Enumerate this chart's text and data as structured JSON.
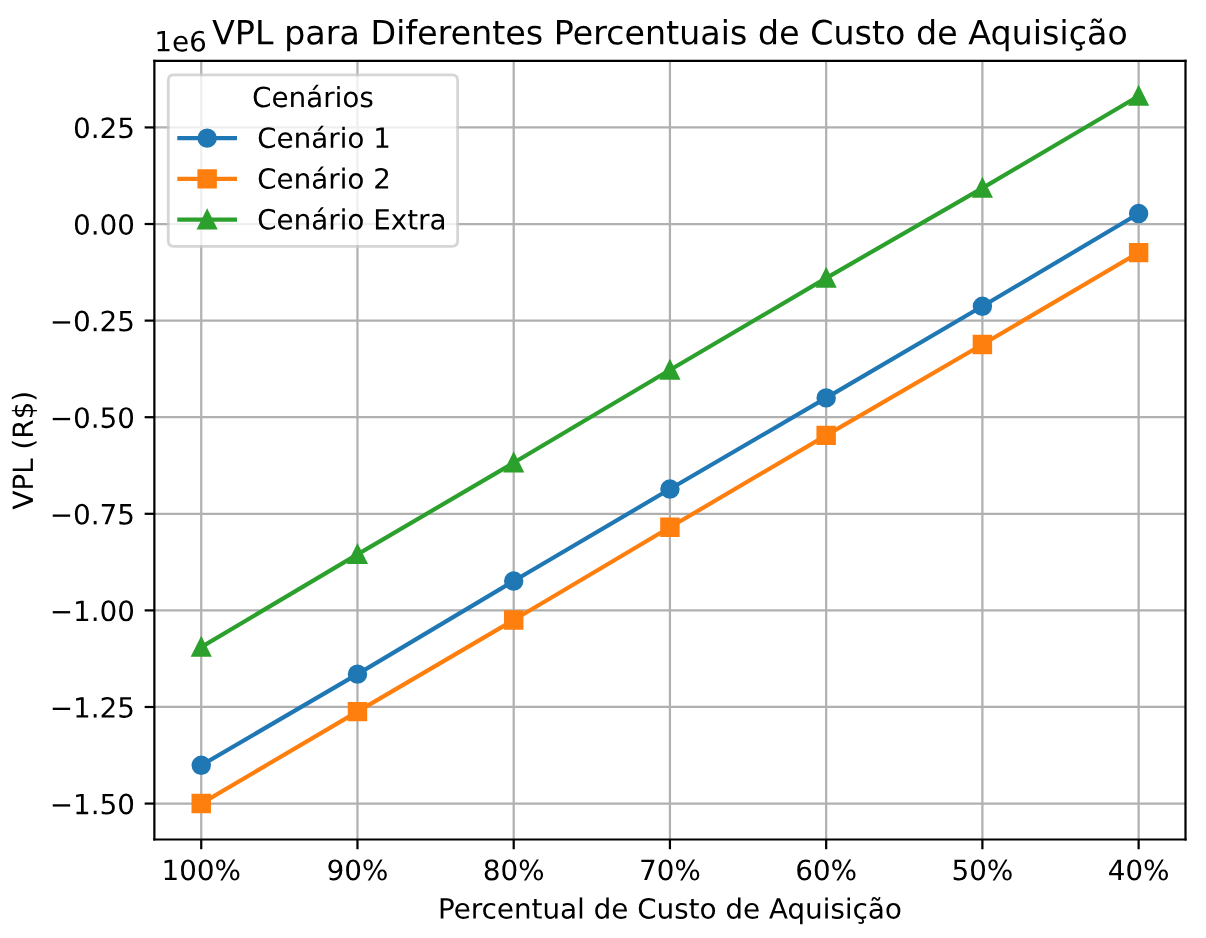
{
  "chart_data": {
    "type": "line",
    "title": "VPL para Diferentes Percentuais de Custo de Aquisição",
    "xlabel": "Percentual de Custo de Aquisição",
    "ylabel": "VPL (R$)",
    "legend_title": "Cenários",
    "annotations": [
      "1e6"
    ],
    "categories": [
      "100%",
      "90%",
      "80%",
      "70%",
      "60%",
      "50%",
      "40%"
    ],
    "series": [
      {
        "name": "Cenário 1",
        "color": "#1f77b4",
        "marker": "circle",
        "values": [
          -1.401,
          -1.165,
          -0.924,
          -0.686,
          -0.45,
          -0.213,
          0.027
        ]
      },
      {
        "name": "Cenário 2",
        "color": "#ff7f0e",
        "marker": "square",
        "values": [
          -1.5,
          -1.262,
          -1.025,
          -0.785,
          -0.547,
          -0.312,
          -0.074
        ]
      },
      {
        "name": "Cenário Extra",
        "color": "#2ca02c",
        "marker": "triangle",
        "values": [
          -1.095,
          -0.855,
          -0.618,
          -0.378,
          -0.14,
          0.093,
          0.331
        ]
      }
    ],
    "ylim": [
      -1.593,
      0.422
    ],
    "yticks": [
      {
        "value": -1.5,
        "label": "−1.50"
      },
      {
        "value": -1.25,
        "label": "−1.25"
      },
      {
        "value": -1.0,
        "label": "−1.00"
      },
      {
        "value": -0.75,
        "label": "−0.75"
      },
      {
        "value": -0.5,
        "label": "−0.50"
      },
      {
        "value": -0.25,
        "label": "−0.25"
      },
      {
        "value": 0,
        "label": "0.00"
      },
      {
        "value": 0.25,
        "label": "0.25"
      }
    ],
    "grid": true,
    "legend": "top left",
    "line_style": "solid"
  }
}
